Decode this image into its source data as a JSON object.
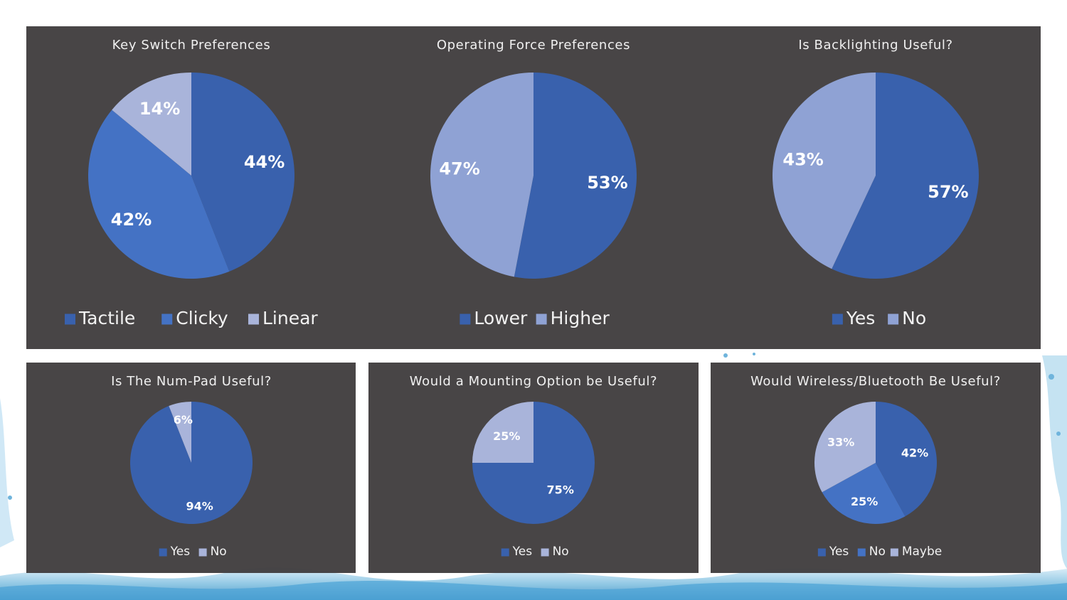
{
  "colors": {
    "dark_blue": "#3961ad",
    "mid_blue": "#4472c4",
    "light_blue": "#8fa2d4",
    "pale_blue": "#a9b4da",
    "panel_bg": "#3d393a"
  },
  "chart_data": [
    {
      "type": "pie",
      "title": "Key Switch Preferences",
      "categories": [
        "Tactile",
        "Clicky",
        "Linear"
      ],
      "values": [
        44,
        42,
        14
      ],
      "labels": [
        "44%",
        "42%",
        "14%"
      ],
      "colors": [
        "#3961ad",
        "#4472c4",
        "#a9b4da"
      ],
      "legend": "bottom"
    },
    {
      "type": "pie",
      "title": "Operating Force Preferences",
      "categories": [
        "Lower",
        "Higher"
      ],
      "values": [
        53,
        47
      ],
      "labels": [
        "53%",
        "47%"
      ],
      "colors": [
        "#3961ad",
        "#8fa2d4"
      ],
      "legend": "bottom"
    },
    {
      "type": "pie",
      "title": "Is Backlighting Useful?",
      "categories": [
        "Yes",
        "No"
      ],
      "values": [
        57,
        43
      ],
      "labels": [
        "57%",
        "43%"
      ],
      "colors": [
        "#3961ad",
        "#8fa2d4"
      ],
      "legend": "bottom"
    },
    {
      "type": "pie",
      "title": "Is The Num-Pad Useful?",
      "categories": [
        "Yes",
        "No"
      ],
      "values": [
        94,
        6
      ],
      "labels": [
        "94%",
        "6%"
      ],
      "colors": [
        "#3961ad",
        "#a9b4da"
      ],
      "legend": "bottom"
    },
    {
      "type": "pie",
      "title": "Would a Mounting Option be Useful?",
      "categories": [
        "Yes",
        "No"
      ],
      "values": [
        75,
        25
      ],
      "labels": [
        "75%",
        "25%"
      ],
      "colors": [
        "#3961ad",
        "#a9b4da"
      ],
      "legend": "bottom"
    },
    {
      "type": "pie",
      "title": "Would Wireless/Bluetooth Be Useful?",
      "categories": [
        "Yes",
        "No",
        "Maybe"
      ],
      "values": [
        42,
        25,
        33
      ],
      "labels": [
        "42%",
        "25%",
        "33%"
      ],
      "colors": [
        "#3961ad",
        "#4472c4",
        "#a9b4da"
      ],
      "legend": "bottom"
    }
  ]
}
